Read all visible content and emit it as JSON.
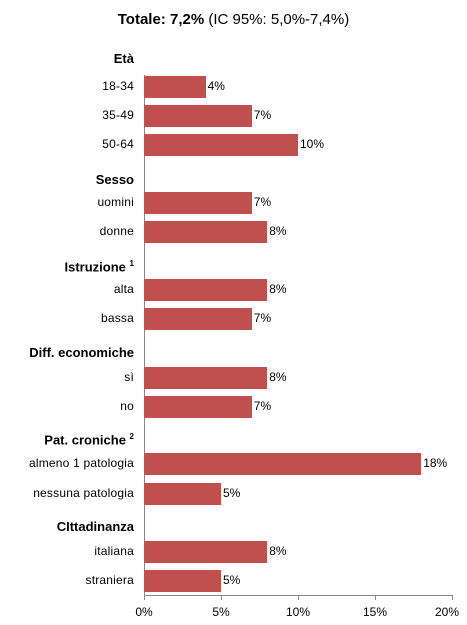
{
  "title": {
    "bold": "Totale: 7,2%",
    "rest": " (IC 95%: 5,0%-7,4%)"
  },
  "colors": {
    "bar": "#c0504d",
    "axis": "#888888"
  },
  "chart_data": {
    "type": "bar",
    "orientation": "horizontal",
    "title": "Totale: 7,2% (IC 95%: 5,0%-7,4%)",
    "xlim": [
      0,
      20
    ],
    "x_ticks": [
      "0%",
      "5%",
      "10%",
      "15%",
      "20%"
    ],
    "grid": false,
    "groups": [
      {
        "name": "Età",
        "sup": "",
        "categories": [
          "18-34",
          "35-49",
          "50-64"
        ],
        "values": [
          4,
          7,
          10
        ],
        "labels": [
          "4%",
          "7%",
          "10%"
        ]
      },
      {
        "name": "Sesso",
        "sup": "",
        "categories": [
          "uomini",
          "donne"
        ],
        "values": [
          7,
          8
        ],
        "labels": [
          "7%",
          "8%"
        ]
      },
      {
        "name": "Istruzione",
        "sup": "1",
        "categories": [
          "alta",
          "bassa"
        ],
        "values": [
          8,
          7
        ],
        "labels": [
          "8%",
          "7%"
        ]
      },
      {
        "name": "Diff. economiche",
        "sup": "",
        "categories": [
          "sì",
          "no"
        ],
        "values": [
          8,
          7
        ],
        "labels": [
          "8%",
          "7%"
        ]
      },
      {
        "name": "Pat. croniche",
        "sup": "2",
        "categories": [
          "almeno 1 patologia",
          "nessuna patologia"
        ],
        "values": [
          18,
          5
        ],
        "labels": [
          "18%",
          "5%"
        ]
      },
      {
        "name": "CIttadinanza",
        "sup": "",
        "categories": [
          "italiana",
          "straniera"
        ],
        "values": [
          8,
          5
        ],
        "labels": [
          "8%",
          "5%"
        ]
      }
    ]
  }
}
